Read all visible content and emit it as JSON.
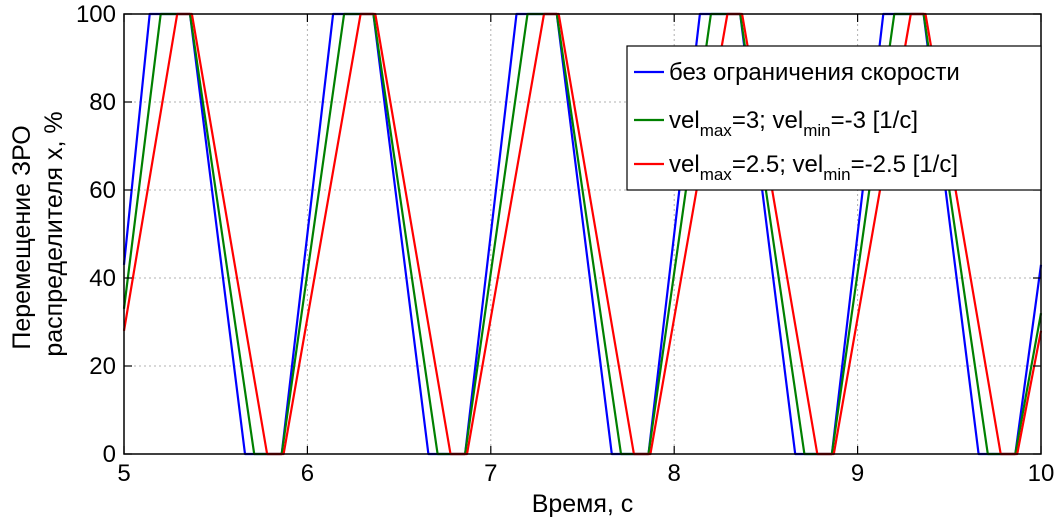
{
  "chart_data": {
    "type": "line",
    "title": "",
    "xlabel": "Время, с",
    "ylabel_lines": [
      "Перемещение ЗРО",
      "распределителя x, %"
    ],
    "xlim": [
      5,
      10
    ],
    "ylim": [
      0,
      100
    ],
    "xticks": [
      "5",
      "6",
      "7",
      "8",
      "9",
      "10"
    ],
    "yticks": [
      "0",
      "20",
      "40",
      "60",
      "80",
      "100"
    ],
    "grid": true,
    "legend_position": "top-right",
    "series": [
      {
        "name": "без ограничения скорости",
        "legend_parts": [
          {
            "t": "без ограничения скорости",
            "sub": false
          }
        ],
        "color": "#0000ff",
        "x": [
          5.0,
          5.14,
          5.36,
          5.66,
          5.86,
          6.14,
          6.36,
          6.66,
          6.86,
          7.14,
          7.36,
          7.66,
          7.86,
          8.14,
          8.36,
          8.66,
          8.86,
          9.14,
          9.36,
          9.66,
          9.86,
          10.0
        ],
        "y": [
          43,
          100,
          100,
          0,
          0,
          100,
          100,
          0,
          0,
          100,
          100,
          0,
          0,
          100,
          100,
          0,
          0,
          100,
          100,
          0,
          0,
          43
        ]
      },
      {
        "name": "vel_max=3; vel_min=-3 [1/c]",
        "legend_parts": [
          {
            "t": "vel",
            "sub": false
          },
          {
            "t": "max",
            "sub": true
          },
          {
            "t": "=3; vel",
            "sub": false
          },
          {
            "t": "min",
            "sub": true
          },
          {
            "t": "=-3 [1/c]",
            "sub": false
          }
        ],
        "color": "#008000",
        "x": [
          5.0,
          5.2,
          5.36,
          5.71,
          5.86,
          6.2,
          6.36,
          6.71,
          6.86,
          7.2,
          7.36,
          7.71,
          7.86,
          8.2,
          8.36,
          8.71,
          8.86,
          9.2,
          9.36,
          9.71,
          9.86,
          10.0
        ],
        "y": [
          33,
          100,
          100,
          0,
          0,
          100,
          100,
          0,
          0,
          100,
          100,
          0,
          0,
          100,
          100,
          0,
          0,
          100,
          100,
          0,
          0,
          32
        ]
      },
      {
        "name": "vel_max=2.5; vel_min=-2.5 [1/c]",
        "legend_parts": [
          {
            "t": "vel",
            "sub": false
          },
          {
            "t": "max",
            "sub": true
          },
          {
            "t": "=2.5; vel",
            "sub": false
          },
          {
            "t": "min",
            "sub": true
          },
          {
            "t": "=-2.5 [1/c]",
            "sub": false
          }
        ],
        "color": "#ff0000",
        "x": [
          5.0,
          5.29,
          5.37,
          5.78,
          5.87,
          6.29,
          6.37,
          6.78,
          6.87,
          7.29,
          7.37,
          7.78,
          7.87,
          8.29,
          8.37,
          8.78,
          8.87,
          9.29,
          9.37,
          9.78,
          9.87,
          10.0
        ],
        "y": [
          28,
          100,
          100,
          0,
          0,
          100,
          100,
          0,
          0,
          100,
          100,
          0,
          0,
          100,
          100,
          0,
          0,
          100,
          100,
          0,
          0,
          28
        ]
      }
    ]
  }
}
